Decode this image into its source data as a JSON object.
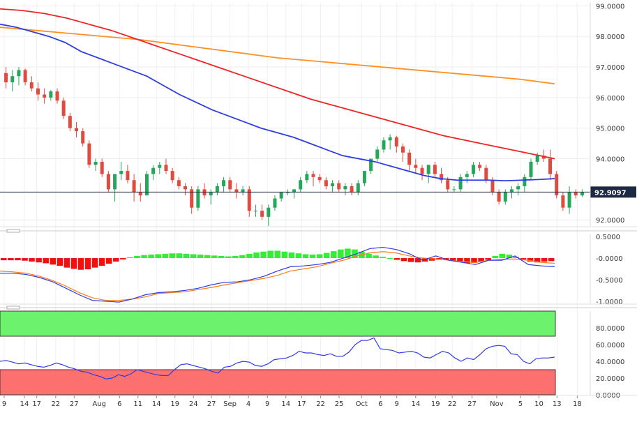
{
  "chart_data": {
    "type": "candlestick-with-indicators",
    "main": {
      "type": "candlestick",
      "y_ticks": [
        "99.0000",
        "98.0000",
        "97.0000",
        "96.0000",
        "95.0000",
        "94.0000",
        "92.0000"
      ],
      "y_tick_values": [
        99,
        98,
        97,
        96,
        95,
        94,
        92
      ],
      "ylim": [
        91.8,
        99.1
      ],
      "last_price_label": "92.9097",
      "last_price": 92.91,
      "colors": {
        "up": "#26a65b",
        "down": "#e04a3f",
        "ma_blue": "#2f3ce0",
        "ma_red": "#ef2424",
        "ma_orange": "#ff9124"
      },
      "candles": [
        [
          96.8,
          97.0,
          96.3,
          96.5
        ],
        [
          96.5,
          96.9,
          96.2,
          96.7
        ],
        [
          96.7,
          97.0,
          96.4,
          96.9
        ],
        [
          96.9,
          96.95,
          96.4,
          96.5
        ],
        [
          96.5,
          96.7,
          96.2,
          96.3
        ],
        [
          96.3,
          96.5,
          95.9,
          96.1
        ],
        [
          96.1,
          96.3,
          95.8,
          96.0
        ],
        [
          96.0,
          96.25,
          95.9,
          96.2
        ],
        [
          96.2,
          96.3,
          95.8,
          95.9
        ],
        [
          95.9,
          96.0,
          95.3,
          95.4
        ],
        [
          95.4,
          95.5,
          94.9,
          95.0
        ],
        [
          95.0,
          95.2,
          94.7,
          94.9
        ],
        [
          94.9,
          95.0,
          94.4,
          94.5
        ],
        [
          94.5,
          94.6,
          93.7,
          93.8
        ],
        [
          93.8,
          94.0,
          93.6,
          93.9
        ],
        [
          93.9,
          94.0,
          93.4,
          93.5
        ],
        [
          93.5,
          93.6,
          92.9,
          93.0
        ],
        [
          93.0,
          93.5,
          92.6,
          93.5
        ],
        [
          93.5,
          93.9,
          93.3,
          93.6
        ],
        [
          93.6,
          93.8,
          93.2,
          93.3
        ],
        [
          93.3,
          93.5,
          92.6,
          92.9
        ],
        [
          92.9,
          93.2,
          92.6,
          92.8
        ],
        [
          92.8,
          93.6,
          92.8,
          93.5
        ],
        [
          93.5,
          93.8,
          93.3,
          93.7
        ],
        [
          93.7,
          93.9,
          93.5,
          93.8
        ],
        [
          93.8,
          94.0,
          93.5,
          93.6
        ],
        [
          93.6,
          93.7,
          93.2,
          93.3
        ],
        [
          93.3,
          93.4,
          93.0,
          93.1
        ],
        [
          93.1,
          93.2,
          92.8,
          93.0
        ],
        [
          93.0,
          93.1,
          92.2,
          92.4
        ],
        [
          92.4,
          93.1,
          92.3,
          93.0
        ],
        [
          93.0,
          93.2,
          92.7,
          92.8
        ],
        [
          92.8,
          93.0,
          92.5,
          92.9
        ],
        [
          92.9,
          93.2,
          92.8,
          93.1
        ],
        [
          93.1,
          93.4,
          92.9,
          93.3
        ],
        [
          93.3,
          93.4,
          92.9,
          93.0
        ],
        [
          93.0,
          93.2,
          92.7,
          92.9
        ],
        [
          92.9,
          93.1,
          92.8,
          93.0
        ],
        [
          93.0,
          93.1,
          92.1,
          92.3
        ],
        [
          92.3,
          92.5,
          92.1,
          92.3
        ],
        [
          92.3,
          92.5,
          92.0,
          92.1
        ],
        [
          92.1,
          92.5,
          91.8,
          92.4
        ],
        [
          92.4,
          92.8,
          92.3,
          92.7
        ],
        [
          92.7,
          92.9,
          92.6,
          92.9
        ],
        [
          92.9,
          93.0,
          92.8,
          92.9
        ],
        [
          92.9,
          93.0,
          92.7,
          93.0
        ],
        [
          93.0,
          93.4,
          92.9,
          93.3
        ],
        [
          93.3,
          93.6,
          93.2,
          93.5
        ],
        [
          93.5,
          93.6,
          93.1,
          93.4
        ],
        [
          93.4,
          93.5,
          93.2,
          93.3
        ],
        [
          93.3,
          93.4,
          93.0,
          93.1
        ],
        [
          93.1,
          93.3,
          92.9,
          93.2
        ],
        [
          93.2,
          93.3,
          92.9,
          93.0
        ],
        [
          93.0,
          93.2,
          92.8,
          93.1
        ],
        [
          93.1,
          93.2,
          92.8,
          92.9
        ],
        [
          92.9,
          93.3,
          92.8,
          93.2
        ],
        [
          93.2,
          93.6,
          93.1,
          93.6
        ],
        [
          93.6,
          94.0,
          93.5,
          94.0
        ],
        [
          94.0,
          94.4,
          93.9,
          94.3
        ],
        [
          94.3,
          94.7,
          94.2,
          94.6
        ],
        [
          94.6,
          94.8,
          94.3,
          94.7
        ],
        [
          94.7,
          94.75,
          94.2,
          94.4
        ],
        [
          94.4,
          94.5,
          93.9,
          94.2
        ],
        [
          94.2,
          94.3,
          93.6,
          93.8
        ],
        [
          93.8,
          94.0,
          93.5,
          93.7
        ],
        [
          93.7,
          93.8,
          93.3,
          93.5
        ],
        [
          93.5,
          93.8,
          93.2,
          93.8
        ],
        [
          93.8,
          93.9,
          93.4,
          93.5
        ],
        [
          93.5,
          93.7,
          93.2,
          93.3
        ],
        [
          93.3,
          93.4,
          92.9,
          93.0
        ],
        [
          93.0,
          93.1,
          92.9,
          93.0
        ],
        [
          93.0,
          93.5,
          92.9,
          93.4
        ],
        [
          93.4,
          93.6,
          93.2,
          93.5
        ],
        [
          93.5,
          93.9,
          93.4,
          93.8
        ],
        [
          93.8,
          93.9,
          93.6,
          93.7
        ],
        [
          93.7,
          93.8,
          93.2,
          93.3
        ],
        [
          93.3,
          93.4,
          92.8,
          92.9
        ],
        [
          92.9,
          93.0,
          92.5,
          92.6
        ],
        [
          92.6,
          93.0,
          92.5,
          92.9
        ],
        [
          92.9,
          93.1,
          92.7,
          93.0
        ],
        [
          93.0,
          93.2,
          92.8,
          93.1
        ],
        [
          93.1,
          93.5,
          92.9,
          93.4
        ],
        [
          93.4,
          94.0,
          93.3,
          93.9
        ],
        [
          93.9,
          94.2,
          93.8,
          94.1
        ],
        [
          94.1,
          94.3,
          93.9,
          94.0
        ],
        [
          94.0,
          94.3,
          93.3,
          93.5
        ],
        [
          93.5,
          93.6,
          92.7,
          92.8
        ],
        [
          92.8,
          92.9,
          92.3,
          92.4
        ],
        [
          92.4,
          93.1,
          92.2,
          92.9
        ],
        [
          92.9,
          93.0,
          92.7,
          92.8
        ],
        [
          92.8,
          93.0,
          92.75,
          92.91
        ]
      ],
      "ma_blue": [
        98.4,
        98.3,
        98.15,
        98.0,
        97.8,
        97.5,
        97.3,
        97.1,
        96.9,
        96.7,
        96.4,
        96.1,
        95.85,
        95.6,
        95.4,
        95.2,
        95.0,
        94.85,
        94.7,
        94.5,
        94.3,
        94.1,
        94.0,
        93.9,
        93.75,
        93.6,
        93.45,
        93.35,
        93.3,
        93.3,
        93.3,
        93.28,
        93.3,
        93.32,
        93.35
      ],
      "ma_red": [
        98.9,
        98.85,
        98.75,
        98.6,
        98.4,
        98.2,
        97.95,
        97.7,
        97.45,
        97.2,
        96.95,
        96.7,
        96.45,
        96.2,
        95.95,
        95.75,
        95.55,
        95.35,
        95.15,
        94.95,
        94.75,
        94.6,
        94.45,
        94.3,
        94.15,
        94.0
      ],
      "ma_orange": [
        98.3,
        98.2,
        98.1,
        98.0,
        97.9,
        97.75,
        97.6,
        97.45,
        97.3,
        97.2,
        97.1,
        97.0,
        96.9,
        96.8,
        96.7,
        96.6,
        96.45
      ]
    },
    "macd": {
      "y_ticks": [
        "0.5000",
        "-0.0000",
        "-0.5000",
        "-1.0000"
      ],
      "y_tick_values": [
        0.5,
        0,
        -0.5,
        -1.0
      ],
      "ylim": [
        -1.05,
        0.55
      ],
      "histogram": [
        -0.05,
        -0.05,
        -0.05,
        -0.06,
        -0.08,
        -0.1,
        -0.12,
        -0.15,
        -0.18,
        -0.22,
        -0.25,
        -0.27,
        -0.26,
        -0.22,
        -0.18,
        -0.13,
        -0.08,
        -0.03,
        0.02,
        0.05,
        0.07,
        0.08,
        0.09,
        0.1,
        0.11,
        0.11,
        0.1,
        0.09,
        0.08,
        0.07,
        0.06,
        0.05,
        0.04,
        0.05,
        0.07,
        0.1,
        0.13,
        0.15,
        0.17,
        0.17,
        0.15,
        0.13,
        0.11,
        0.09,
        0.08,
        0.09,
        0.12,
        0.16,
        0.2,
        0.22,
        0.2,
        0.15,
        0.1,
        0.06,
        0.03,
        0.0,
        -0.04,
        -0.07,
        -0.09,
        -0.1,
        -0.08,
        -0.06,
        -0.04,
        -0.03,
        -0.06,
        -0.09,
        -0.12,
        -0.11,
        -0.08,
        -0.04,
        0.05,
        0.1,
        0.08,
        0.03,
        -0.03,
        -0.08,
        -0.1,
        -0.08,
        -0.07
      ],
      "macd_line": [
        -0.35,
        -0.35,
        -0.38,
        -0.45,
        -0.55,
        -0.7,
        -0.85,
        -0.98,
        -1.0,
        -1.02,
        -0.95,
        -0.85,
        -0.8,
        -0.78,
        -0.75,
        -0.7,
        -0.62,
        -0.56,
        -0.55,
        -0.5,
        -0.42,
        -0.3,
        -0.2,
        -0.18,
        -0.15,
        -0.1,
        0.0,
        0.1,
        0.22,
        0.25,
        0.2,
        0.1,
        -0.05,
        0.05,
        -0.05,
        -0.1,
        -0.15,
        -0.05,
        -0.05,
        0.05,
        -0.15,
        -0.18,
        -0.2
      ],
      "signal_line": [
        -0.3,
        -0.32,
        -0.35,
        -0.42,
        -0.52,
        -0.65,
        -0.8,
        -0.92,
        -0.98,
        -0.98,
        -0.95,
        -0.9,
        -0.82,
        -0.8,
        -0.78,
        -0.73,
        -0.68,
        -0.62,
        -0.57,
        -0.52,
        -0.47,
        -0.4,
        -0.3,
        -0.25,
        -0.2,
        -0.12,
        -0.05,
        0.05,
        0.12,
        0.15,
        0.12,
        0.05,
        0.0,
        -0.02,
        -0.05,
        -0.08,
        -0.1,
        -0.05,
        -0.03,
        -0.02,
        -0.05,
        -0.1,
        -0.12
      ]
    },
    "rsi": {
      "y_ticks": [
        "80.0000",
        "60.0000",
        "40.0000",
        "20.0000",
        "0.0000"
      ],
      "y_tick_values": [
        80,
        60,
        40,
        20,
        0
      ],
      "ylim": [
        0,
        100
      ],
      "overbought": 70,
      "oversold": 30,
      "values": [
        40,
        41,
        39,
        37,
        38,
        36,
        34,
        33,
        35,
        38,
        36,
        33,
        31,
        28,
        27,
        24,
        22,
        19,
        20,
        24,
        22,
        25,
        30,
        28,
        26,
        24,
        23,
        23,
        30,
        36,
        37,
        35,
        33,
        31,
        28,
        26,
        33,
        34,
        38,
        40,
        39,
        35,
        34,
        37,
        42,
        43,
        44,
        47,
        52,
        50,
        50,
        48,
        47,
        49,
        46,
        46,
        51,
        60,
        65,
        65,
        68,
        55,
        54,
        53,
        50,
        51,
        52,
        50,
        45,
        44,
        48,
        52,
        50,
        44,
        40,
        44,
        42,
        48,
        55,
        58,
        59,
        58,
        49,
        48,
        40,
        37,
        43,
        44,
        44,
        45
      ]
    },
    "x_ticks": [
      "9",
      "14",
      "17",
      "22",
      "27",
      "Aug",
      "6",
      "11",
      "14",
      "19",
      "24",
      "27",
      "Sep",
      "4",
      "9",
      "14",
      "17",
      "22",
      "25",
      "Oct",
      "6",
      "9",
      "14",
      "19",
      "22",
      "27",
      "Nov",
      "5",
      "10",
      "13",
      "18"
    ],
    "x_tick_values": [
      0,
      4.6,
      7.4,
      11.7,
      15.9,
      21.6,
      26.2,
      30.4,
      34.6,
      38.8,
      43,
      47.1,
      51.3,
      55.5,
      59.8,
      64,
      67.6,
      71.9,
      76.1,
      81.2,
      85.5,
      89.2,
      93.5,
      98,
      101.8,
      106.3,
      111.9,
      117.3,
      121.5,
      125.6,
      130.2
    ],
    "x_range": [
      0,
      133
    ]
  }
}
